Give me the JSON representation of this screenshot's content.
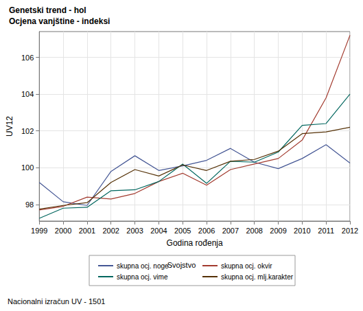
{
  "chart_data": {
    "type": "line",
    "title": "Genetski trend - hol",
    "subtitle": "Ocjena vanjštine - indeksi",
    "x_label": "Godina rođenja",
    "y_label": "UV12",
    "legend_title": "Svojstvo",
    "annotations": [
      "Nacionalni izračun UV - 1501"
    ],
    "categories": [
      "1999",
      "2000",
      "2001",
      "2002",
      "2003",
      "2004",
      "2005",
      "2006",
      "2007",
      "2008",
      "2009",
      "2010",
      "2011",
      "2012"
    ],
    "series": [
      {
        "name": "skupna ocj. noge",
        "color": "#445694",
        "values": [
          99.2,
          98.15,
          97.95,
          99.8,
          100.65,
          99.85,
          100.1,
          100.4,
          101.05,
          100.3,
          99.95,
          100.5,
          101.25,
          100.25
        ]
      },
      {
        "name": "skupna ocj. okvir",
        "color": "#A23A2E",
        "values": [
          97.7,
          97.9,
          98.4,
          98.3,
          98.6,
          99.25,
          99.7,
          99.05,
          99.9,
          100.2,
          100.5,
          101.5,
          103.8,
          107.2
        ]
      },
      {
        "name": "skupna ocj. vime",
        "color": "#01665E",
        "values": [
          97.25,
          97.8,
          97.85,
          98.75,
          98.8,
          99.25,
          100.2,
          99.15,
          100.35,
          100.3,
          100.85,
          102.3,
          102.4,
          104.0
        ]
      },
      {
        "name": "skupna ocj. mlj.karakter",
        "color": "#543005",
        "values": [
          97.75,
          97.95,
          98.1,
          99.2,
          99.9,
          99.55,
          100.15,
          99.85,
          100.35,
          100.45,
          100.9,
          101.85,
          101.95,
          102.2
        ]
      }
    ],
    "ylim": [
      97.1,
      107.4
    ],
    "yticks": [
      98,
      100,
      102,
      104,
      106
    ],
    "grid": true,
    "legend": "bottom"
  }
}
